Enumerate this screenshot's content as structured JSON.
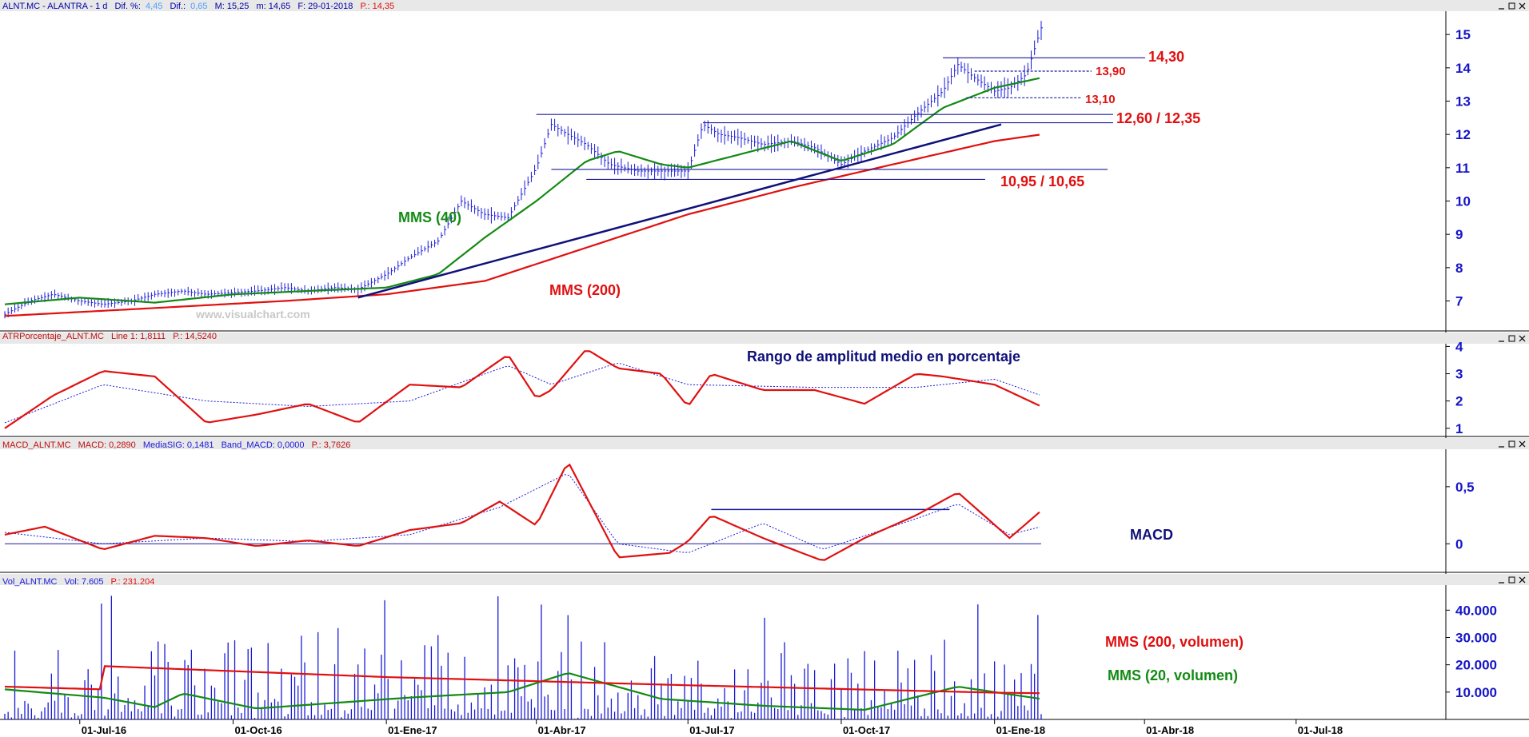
{
  "colors": {
    "price": "#1a1adb",
    "mms40": "#138a13",
    "mms200": "#e01010",
    "trend": "#10107a",
    "annotation_red": "#e01010",
    "annotation_green": "#138a13",
    "annotation_navy": "#10107a",
    "axis": "#1515c8",
    "level_line": "#1a1a9a"
  },
  "icons": [
    "minimize-icon",
    "maximize-icon",
    "close-icon"
  ],
  "panels": {
    "price": {
      "header": {
        "symbol": "ALNT.MC - ALANTRA - 1 d",
        "dif_pct_label": "Dif. %:",
        "dif_pct_value": "4,45",
        "dif_label": "Dif.:",
        "dif_value": "0,65",
        "m_max": "M: 15,25",
        "m_min": "m: 14,65",
        "date": "F: 29-01-2018",
        "last": "P.: 14,35"
      },
      "watermark": "www.visualchart.com",
      "labels": {
        "mms40": "MMS (40)",
        "mms200": "MMS (200)",
        "res1": "14,30",
        "res2": "13,90",
        "sup1": "13,10",
        "zone1": "12,60 / 12,35",
        "zone2": "10,95 / 10,65"
      },
      "y_ticks": [
        "15",
        "14",
        "13",
        "12",
        "11",
        "10",
        "9",
        "8",
        "7"
      ]
    },
    "atr": {
      "header": {
        "name": "ATRPorcentaje_ALNT.MC",
        "line": "Line 1: 1,8111",
        "p": "P.: 14,5240"
      },
      "title": "Rango de amplitud medio en porcentaje",
      "y_ticks": [
        "4",
        "3",
        "2",
        "1"
      ]
    },
    "macd": {
      "header": {
        "name": "MACD_ALNT.MC",
        "macd": "MACD: 0,2890",
        "sig": "MediaSIG: 0,1481",
        "band": "Band_MACD: 0,0000",
        "p": "P.: 3,7626"
      },
      "title": "MACD",
      "y_ticks": [
        "0,5",
        "0"
      ]
    },
    "volume": {
      "header": {
        "name": "Vol_ALNT.MC",
        "vol": "Vol: 7.605",
        "p": "P.: 231.204"
      },
      "labels": {
        "mms200v": "MMS (200, volumen)",
        "mms20v": "MMS (20, volumen)"
      },
      "y_ticks": [
        "40.000",
        "30.000",
        "20.000",
        "10.000"
      ]
    }
  },
  "x_axis": {
    "labels": [
      "01-Jul-16",
      "01-Oct-16",
      "01-Ene-17",
      "01-Abr-17",
      "01-Jul-17",
      "01-Oct-17",
      "01-Ene-18",
      "01-Abr-18",
      "01-Jul-18"
    ]
  },
  "chart_data": [
    {
      "type": "line",
      "title": "ALNT.MC - ALANTRA - 1 d",
      "y_unit": "EUR",
      "ylim": [
        6.1,
        15.7
      ],
      "x_range": [
        "2016-05-17",
        "2018-01-29"
      ],
      "y_ticks": [
        7,
        8,
        9,
        10,
        11,
        12,
        13,
        14,
        15
      ],
      "series": [
        {
          "name": "",
          "style": "ohlc-bars",
          "color": "#1a1adb",
          "x": [
            "2016-05-17",
            "2016-06-01",
            "2016-06-15",
            "2016-07-01",
            "2016-07-15",
            "2016-08-01",
            "2016-08-15",
            "2016-09-01",
            "2016-09-15",
            "2016-10-01",
            "2016-10-15",
            "2016-11-01",
            "2016-11-15",
            "2016-12-01",
            "2016-12-15",
            "2017-01-01",
            "2017-01-15",
            "2017-02-01",
            "2017-02-15",
            "2017-03-01",
            "2017-03-15",
            "2017-04-01",
            "2017-04-10",
            "2017-04-20",
            "2017-05-01",
            "2017-05-15",
            "2017-06-01",
            "2017-06-15",
            "2017-07-01",
            "2017-07-10",
            "2017-07-20",
            "2017-08-01",
            "2017-08-15",
            "2017-09-01",
            "2017-09-15",
            "2017-10-01",
            "2017-10-15",
            "2017-11-01",
            "2017-11-15",
            "2017-12-01",
            "2017-12-10",
            "2017-12-20",
            "2018-01-01",
            "2018-01-10",
            "2018-01-20",
            "2018-01-29"
          ],
          "y": [
            6.6,
            7.0,
            7.2,
            7.0,
            6.9,
            7.0,
            7.2,
            7.3,
            7.2,
            7.25,
            7.3,
            7.4,
            7.3,
            7.4,
            7.35,
            7.8,
            8.3,
            8.8,
            10.0,
            9.6,
            9.5,
            11.0,
            12.3,
            12.0,
            11.7,
            11.1,
            10.9,
            10.9,
            10.9,
            12.3,
            12.0,
            11.9,
            11.7,
            11.8,
            11.6,
            11.1,
            11.5,
            11.9,
            12.6,
            13.3,
            14.1,
            13.7,
            13.3,
            13.4,
            13.8,
            15.2
          ]
        },
        {
          "name": "MMS (40)",
          "color": "#138a13",
          "x": [
            "2016-05-17",
            "2016-07-01",
            "2016-08-15",
            "2016-10-01",
            "2016-11-15",
            "2017-01-01",
            "2017-02-01",
            "2017-03-01",
            "2017-04-01",
            "2017-05-01",
            "2017-05-20",
            "2017-06-15",
            "2017-07-01",
            "2017-08-01",
            "2017-09-01",
            "2017-10-01",
            "2017-11-01",
            "2017-12-01",
            "2018-01-01",
            "2018-01-29"
          ],
          "y": [
            6.9,
            7.1,
            6.95,
            7.2,
            7.3,
            7.4,
            7.8,
            8.9,
            10.0,
            11.2,
            11.5,
            11.1,
            11.0,
            11.4,
            11.8,
            11.2,
            11.7,
            12.8,
            13.4,
            13.7
          ]
        },
        {
          "name": "MMS (200)",
          "color": "#e01010",
          "x": [
            "2016-05-17",
            "2016-08-01",
            "2016-11-01",
            "2017-01-01",
            "2017-03-01",
            "2017-05-01",
            "2017-07-01",
            "2017-09-01",
            "2017-11-01",
            "2018-01-01",
            "2018-01-29"
          ],
          "y": [
            6.55,
            6.75,
            7.0,
            7.2,
            7.6,
            8.6,
            9.6,
            10.4,
            11.1,
            11.8,
            12.0
          ]
        }
      ],
      "annotations": {
        "trendline": {
          "from": [
            "2016-12-15",
            7.1
          ],
          "to": [
            "2018-01-05",
            12.3
          ]
        },
        "horizontal_levels": [
          14.3,
          13.9,
          13.1,
          12.6,
          12.35,
          10.95,
          10.65
        ]
      }
    },
    {
      "type": "line",
      "title": "Rango de amplitud medio en porcentaje",
      "ylim": [
        0.7,
        4.1
      ],
      "y_ticks": [
        1,
        2,
        3,
        4
      ],
      "series": [
        {
          "name": "Line 1",
          "color": "#e01010",
          "x": [
            "2016-05-17",
            "2016-06-15",
            "2016-07-15",
            "2016-08-15",
            "2016-09-15",
            "2016-10-15",
            "2016-11-15",
            "2016-12-15",
            "2017-01-15",
            "2017-02-15",
            "2017-03-15",
            "2017-04-01",
            "2017-04-10",
            "2017-05-01",
            "2017-05-20",
            "2017-06-15",
            "2017-07-01",
            "2017-07-15",
            "2017-08-15",
            "2017-09-15",
            "2017-10-15",
            "2017-11-15",
            "2017-12-01",
            "2018-01-01",
            "2018-01-29"
          ],
          "y": [
            1.0,
            2.2,
            3.1,
            2.9,
            1.2,
            1.5,
            1.9,
            1.2,
            2.6,
            2.5,
            3.7,
            2.1,
            2.4,
            3.9,
            3.2,
            3.0,
            1.8,
            3.0,
            2.4,
            2.4,
            1.9,
            3.0,
            2.9,
            2.6,
            1.8
          ]
        },
        {
          "name": "",
          "style": "dotted",
          "color": "#1a1adb",
          "x": [
            "2016-05-17",
            "2016-07-15",
            "2016-09-15",
            "2016-11-15",
            "2017-01-15",
            "2017-03-15",
            "2017-04-10",
            "2017-05-20",
            "2017-07-01",
            "2017-09-15",
            "2017-11-15",
            "2018-01-01",
            "2018-01-29"
          ],
          "y": [
            1.2,
            2.6,
            2.0,
            1.8,
            2.0,
            3.3,
            2.6,
            3.4,
            2.6,
            2.5,
            2.5,
            2.8,
            2.2
          ]
        }
      ]
    },
    {
      "type": "line",
      "title": "MACD",
      "ylim": [
        -0.25,
        0.8
      ],
      "y_ticks": [
        0,
        0.5
      ],
      "series": [
        {
          "name": "MACD",
          "color": "#e01010",
          "x": [
            "2016-05-17",
            "2016-06-10",
            "2016-07-15",
            "2016-08-15",
            "2016-09-15",
            "2016-10-15",
            "2016-11-15",
            "2016-12-15",
            "2017-01-15",
            "2017-02-15",
            "2017-03-10",
            "2017-04-01",
            "2017-04-20",
            "2017-05-20",
            "2017-06-20",
            "2017-07-01",
            "2017-07-15",
            "2017-08-15",
            "2017-09-20",
            "2017-10-15",
            "2017-11-15",
            "2017-12-10",
            "2018-01-10",
            "2018-01-29"
          ],
          "y": [
            0.08,
            0.15,
            -0.05,
            0.07,
            0.05,
            -0.02,
            0.03,
            -0.02,
            0.12,
            0.18,
            0.37,
            0.16,
            0.72,
            -0.12,
            -0.08,
            0.02,
            0.25,
            0.05,
            -0.15,
            0.05,
            0.25,
            0.45,
            0.05,
            0.29
          ]
        },
        {
          "name": "MediaSIG",
          "style": "dotted",
          "color": "#1a1adb",
          "x": [
            "2016-05-17",
            "2016-07-15",
            "2016-09-15",
            "2016-11-15",
            "2017-01-15",
            "2017-03-10",
            "2017-04-20",
            "2017-05-20",
            "2017-07-01",
            "2017-08-15",
            "2017-09-20",
            "2017-11-15",
            "2017-12-10",
            "2018-01-10",
            "2018-01-29"
          ],
          "y": [
            0.1,
            0.0,
            0.05,
            0.02,
            0.08,
            0.32,
            0.62,
            0.0,
            -0.08,
            0.18,
            -0.05,
            0.22,
            0.35,
            0.08,
            0.15
          ]
        }
      ],
      "annotations": {
        "horizontal_levels": [
          0,
          0.3
        ]
      }
    },
    {
      "type": "bar",
      "title": "Vol_ALNT.MC",
      "ylim": [
        0,
        48000
      ],
      "y_ticks": [
        10000,
        20000,
        30000,
        40000
      ],
      "series": [
        {
          "name": "MMS (200, volumen)",
          "color": "#e01010",
          "x": [
            "2016-05-17",
            "2016-07-15",
            "2016-07-16",
            "2017-01-01",
            "2017-07-01",
            "2018-01-01",
            "2018-01-29"
          ],
          "y": [
            12000,
            11000,
            19500,
            15500,
            12500,
            9800,
            9600
          ]
        },
        {
          "name": "MMS (20, volumen)",
          "color": "#138a13",
          "x": [
            "2016-05-17",
            "2016-07-15",
            "2016-08-15",
            "2016-09-01",
            "2016-10-15",
            "2017-01-15",
            "2017-03-15",
            "2017-04-20",
            "2017-06-15",
            "2017-08-15",
            "2017-10-15",
            "2017-12-10",
            "2018-01-29"
          ],
          "y": [
            11000,
            8000,
            4500,
            9500,
            4000,
            8000,
            10000,
            17000,
            7500,
            5000,
            3500,
            12000,
            7500
          ]
        }
      ]
    }
  ]
}
